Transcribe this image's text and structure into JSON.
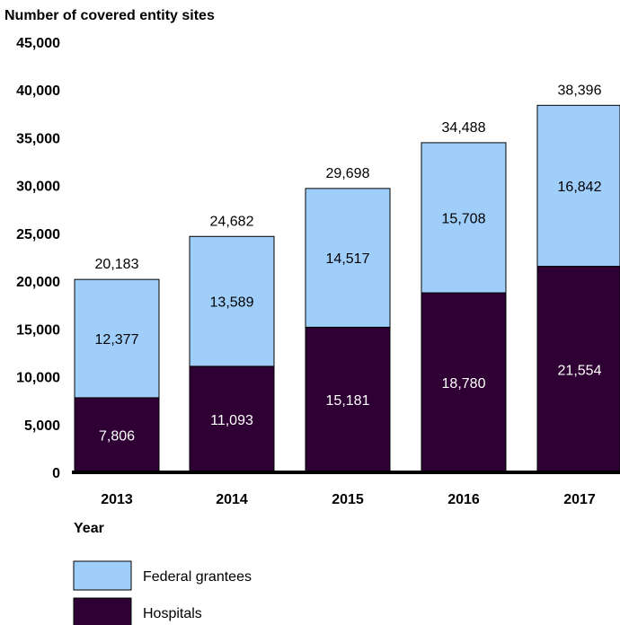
{
  "chart_data": {
    "type": "bar",
    "stacked": true,
    "ylabel": "Number of covered entity sites",
    "xlabel": "Year",
    "ylim": [
      0,
      45000
    ],
    "yticks": [
      0,
      5000,
      10000,
      15000,
      20000,
      25000,
      30000,
      35000,
      40000,
      45000
    ],
    "ytick_labels": [
      "0",
      "5,000",
      "10,000",
      "15,000",
      "20,000",
      "25,000",
      "30,000",
      "35,000",
      "40,000",
      "45,000"
    ],
    "categories": [
      "2013",
      "2014",
      "2015",
      "2016",
      "2017"
    ],
    "series": [
      {
        "name": "Hospitals",
        "color": "#2e0033",
        "values": [
          7806,
          11093,
          15181,
          18780,
          21554
        ],
        "value_labels": [
          "7,806",
          "11,093",
          "15,181",
          "18,780",
          "21,554"
        ]
      },
      {
        "name": "Federal grantees",
        "color": "#9fcefa",
        "values": [
          12377,
          13589,
          14517,
          15708,
          16842
        ],
        "value_labels": [
          "12,377",
          "13,589",
          "14,517",
          "15,708",
          "16,842"
        ]
      }
    ],
    "totals": [
      20183,
      24682,
      29698,
      34488,
      38396
    ],
    "total_labels": [
      "20,183",
      "24,682",
      "29,698",
      "34,488",
      "38,396"
    ],
    "legend": {
      "placement": "bottom-left",
      "entries": [
        "Federal grantees",
        "Hospitals"
      ]
    },
    "grid": false
  },
  "colors": {
    "hospitals": "#2e0033",
    "federal_grantees": "#9fcefa",
    "bar_outline": "#000000",
    "axis": "#000000"
  }
}
